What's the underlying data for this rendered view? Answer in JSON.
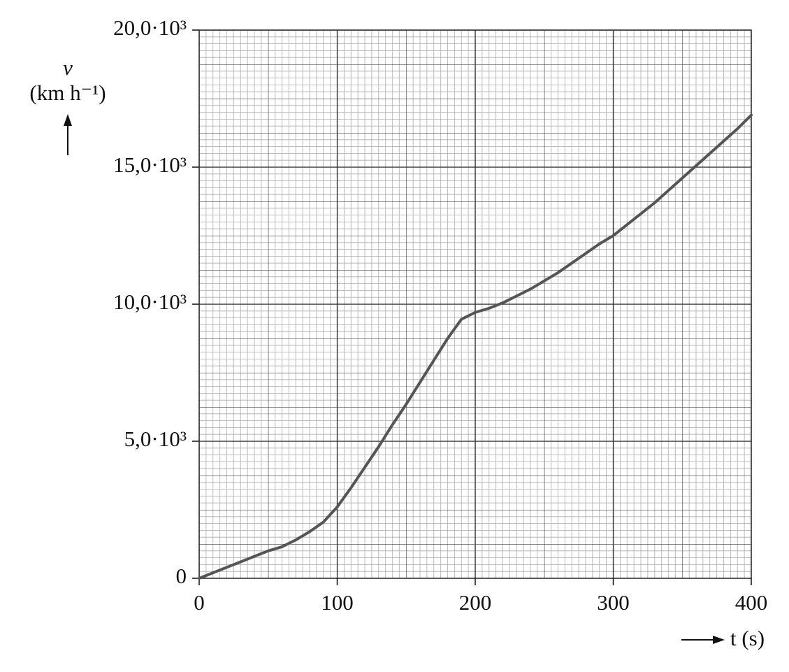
{
  "chart_data": {
    "type": "line",
    "y_label": "v",
    "y_unit": "(km h⁻¹)",
    "x_label": "t (s)",
    "x": [
      0,
      10,
      20,
      30,
      40,
      50,
      60,
      70,
      80,
      90,
      100,
      110,
      120,
      130,
      140,
      150,
      160,
      170,
      180,
      190,
      200,
      210,
      220,
      230,
      240,
      250,
      260,
      270,
      280,
      290,
      300,
      310,
      320,
      330,
      340,
      350,
      360,
      370,
      380,
      390,
      400
    ],
    "series": [
      {
        "color": "#555555",
        "values": [
          0,
          200,
          400,
          600,
          800,
          1000,
          1150,
          1400,
          1700,
          2050,
          2600,
          3300,
          4050,
          4800,
          5600,
          6350,
          7150,
          7950,
          8750,
          9450,
          9700,
          9850,
          10050,
          10300,
          10550,
          10850,
          11150,
          11500,
          11850,
          12200,
          12500,
          12900,
          13300,
          13700,
          14150,
          14600,
          15050,
          15500,
          15950,
          16400,
          16900
        ]
      }
    ],
    "xlim": [
      0,
      400
    ],
    "ylim": [
      0,
      20000
    ],
    "xticks": [
      0,
      100,
      200,
      300,
      400
    ],
    "yticks": [
      0,
      {
        "value": 5000,
        "label": "5,0·10³"
      },
      {
        "value": 10000,
        "label": "10,0·10³"
      },
      {
        "value": 15000,
        "label": "15,0·10³"
      },
      {
        "value": 20000,
        "label": "20,0·10³"
      }
    ],
    "grid": true
  }
}
